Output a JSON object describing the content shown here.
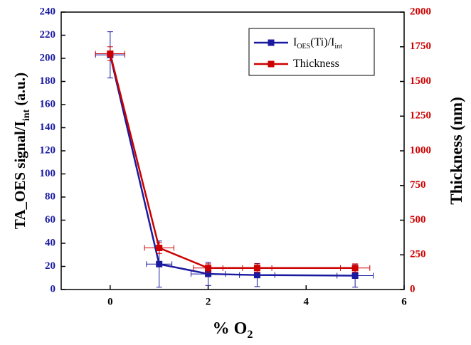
{
  "chart_data": {
    "type": "line",
    "xlabel": [
      {
        "text": "% O"
      },
      {
        "text": "2",
        "sub": true
      }
    ],
    "ylabel": [
      {
        "text": "TA_OES signal/I"
      },
      {
        "text": "int",
        "sub": true
      },
      {
        "text": " (a.u.)"
      }
    ],
    "y2label": [
      {
        "text": "Thickness (nm)"
      }
    ],
    "x": [
      0,
      1,
      2,
      3,
      5
    ],
    "xlim": [
      -1,
      6
    ],
    "xticks": [
      0,
      2,
      4,
      6
    ],
    "ylim": [
      0,
      240
    ],
    "yticks": [
      0,
      20,
      40,
      60,
      80,
      100,
      120,
      140,
      160,
      180,
      200,
      220,
      240
    ],
    "y2lim": [
      0,
      2000
    ],
    "y2ticks": [
      0,
      250,
      500,
      750,
      1000,
      1250,
      1500,
      1750,
      2000
    ],
    "ycolor": "#1a1aa0",
    "y2color": "#cc0000",
    "legend": "upper right",
    "series": [
      {
        "name": [
          {
            "text": "I"
          },
          {
            "text": "OES",
            "sub": true
          },
          {
            "text": "(Ti)/I"
          },
          {
            "text": "int",
            "sub": true
          }
        ],
        "color": "#1a1aa0",
        "values": [
          203,
          22,
          13.5,
          12.5,
          12
        ],
        "y_errors": [
          20,
          20,
          10,
          10,
          10
        ],
        "x_errors": [
          0.3,
          0.26,
          0.35,
          0.36,
          0.37
        ]
      },
      {
        "name": [
          {
            "text": "Thickness"
          }
        ],
        "axis": "y2",
        "color": "#cc0000",
        "values": [
          1700,
          300,
          155,
          155,
          155
        ],
        "y_errors": [
          50,
          40,
          30,
          30,
          30
        ],
        "x_errors": [
          0.3,
          0.3,
          0.3,
          0.3,
          0.3
        ]
      }
    ]
  }
}
